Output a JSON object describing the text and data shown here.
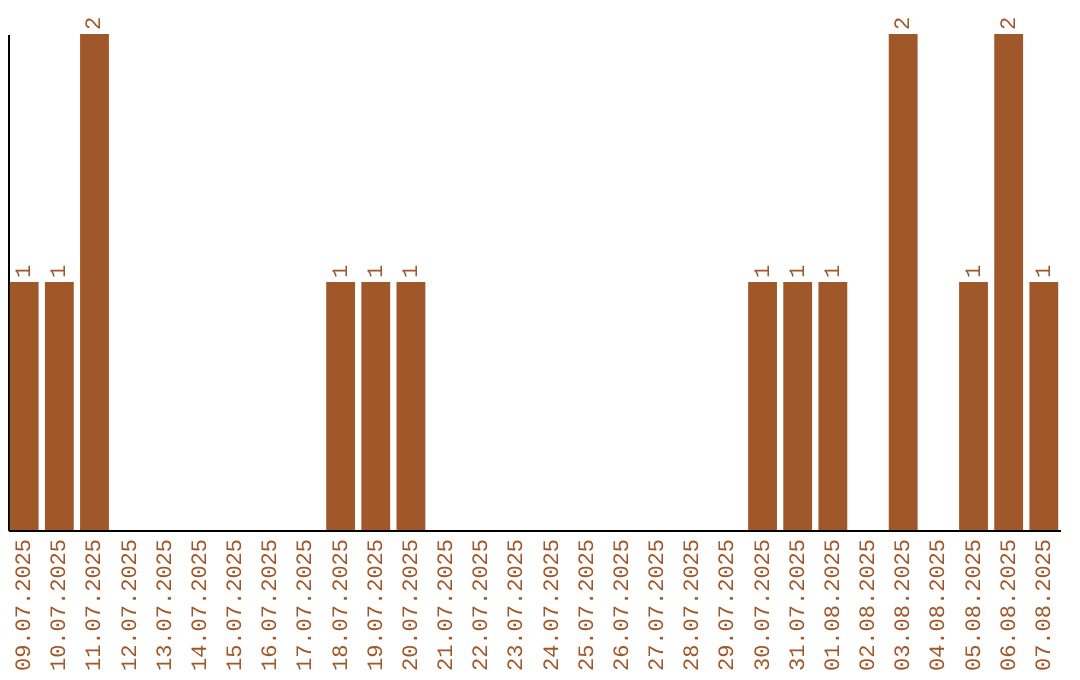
{
  "chart_data": {
    "type": "bar",
    "categories": [
      "09.07.2025",
      "10.07.2025",
      "11.07.2025",
      "12.07.2025",
      "13.07.2025",
      "14.07.2025",
      "15.07.2025",
      "16.07.2025",
      "17.07.2025",
      "18.07.2025",
      "19.07.2025",
      "20.07.2025",
      "21.07.2025",
      "22.07.2025",
      "23.07.2025",
      "24.07.2025",
      "25.07.2025",
      "26.07.2025",
      "27.07.2025",
      "28.07.2025",
      "29.07.2025",
      "30.07.2025",
      "31.07.2025",
      "01.08.2025",
      "02.08.2025",
      "03.08.2025",
      "04.08.2025",
      "05.08.2025",
      "06.08.2025",
      "07.08.2025"
    ],
    "values": [
      1,
      1,
      2,
      0,
      0,
      0,
      0,
      0,
      0,
      1,
      1,
      1,
      0,
      0,
      0,
      0,
      0,
      0,
      0,
      0,
      0,
      1,
      1,
      1,
      0,
      2,
      0,
      1,
      2,
      1
    ],
    "value_labels": [
      "1",
      "1",
      "2",
      null,
      null,
      null,
      null,
      null,
      null,
      "1",
      "1",
      "1",
      null,
      null,
      null,
      null,
      null,
      null,
      null,
      null,
      null,
      "1",
      "1",
      "1",
      null,
      "2",
      null,
      "1",
      "2",
      "1"
    ],
    "color": "#a0572a",
    "grid": false
  }
}
